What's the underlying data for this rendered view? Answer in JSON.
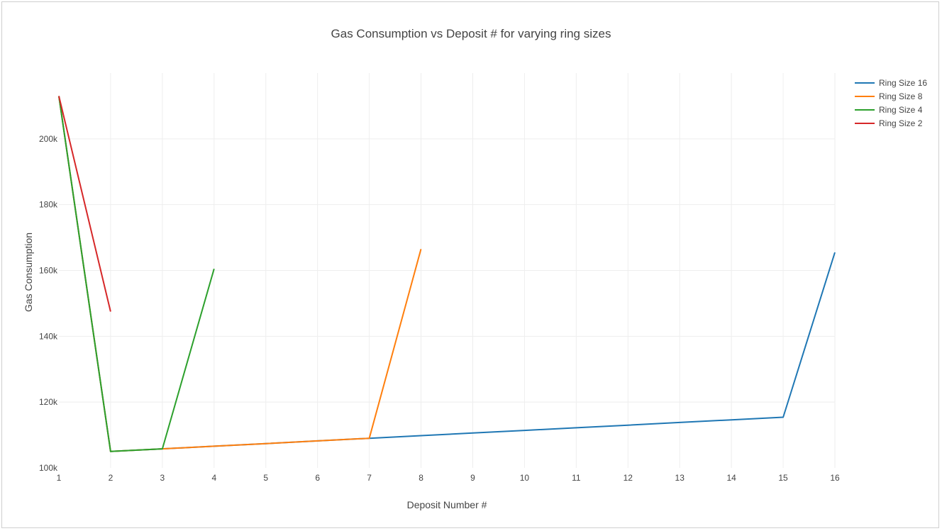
{
  "chart_data": {
    "type": "line",
    "title": "Gas Consumption vs Deposit # for varying ring sizes",
    "xlabel": "Deposit Number #",
    "ylabel": "Gas Consumption",
    "xlim": [
      1,
      16
    ],
    "ylim": [
      100000,
      220000
    ],
    "x_ticks": [
      1,
      2,
      3,
      4,
      5,
      6,
      7,
      8,
      9,
      10,
      11,
      12,
      13,
      14,
      15,
      16
    ],
    "y_ticks": [
      100000,
      120000,
      140000,
      160000,
      180000,
      200000
    ],
    "y_tick_labels": [
      "100k",
      "120k",
      "140k",
      "160k",
      "180k",
      "200k"
    ],
    "grid": true,
    "legend_position": "top-right",
    "series": [
      {
        "name": "Ring Size 16",
        "color": "#1f77b4",
        "x": [
          1,
          2,
          3,
          4,
          5,
          6,
          7,
          8,
          9,
          10,
          11,
          12,
          13,
          14,
          15,
          16
        ],
        "y": [
          213000,
          105000,
          105800,
          106600,
          107400,
          108200,
          109000,
          109800,
          110600,
          111400,
          112200,
          113000,
          113800,
          114600,
          115400,
          165500
        ]
      },
      {
        "name": "Ring Size 8",
        "color": "#ff7f0e",
        "x": [
          1,
          2,
          3,
          4,
          5,
          6,
          7,
          8
        ],
        "y": [
          213000,
          105000,
          105800,
          106600,
          107400,
          108200,
          109000,
          166500
        ]
      },
      {
        "name": "Ring Size 4",
        "color": "#2ca02c",
        "x": [
          1,
          2,
          3,
          4
        ],
        "y": [
          213000,
          105000,
          105800,
          160500
        ]
      },
      {
        "name": "Ring Size 2",
        "color": "#d62728",
        "x": [
          1,
          2
        ],
        "y": [
          213000,
          147500
        ]
      }
    ]
  }
}
